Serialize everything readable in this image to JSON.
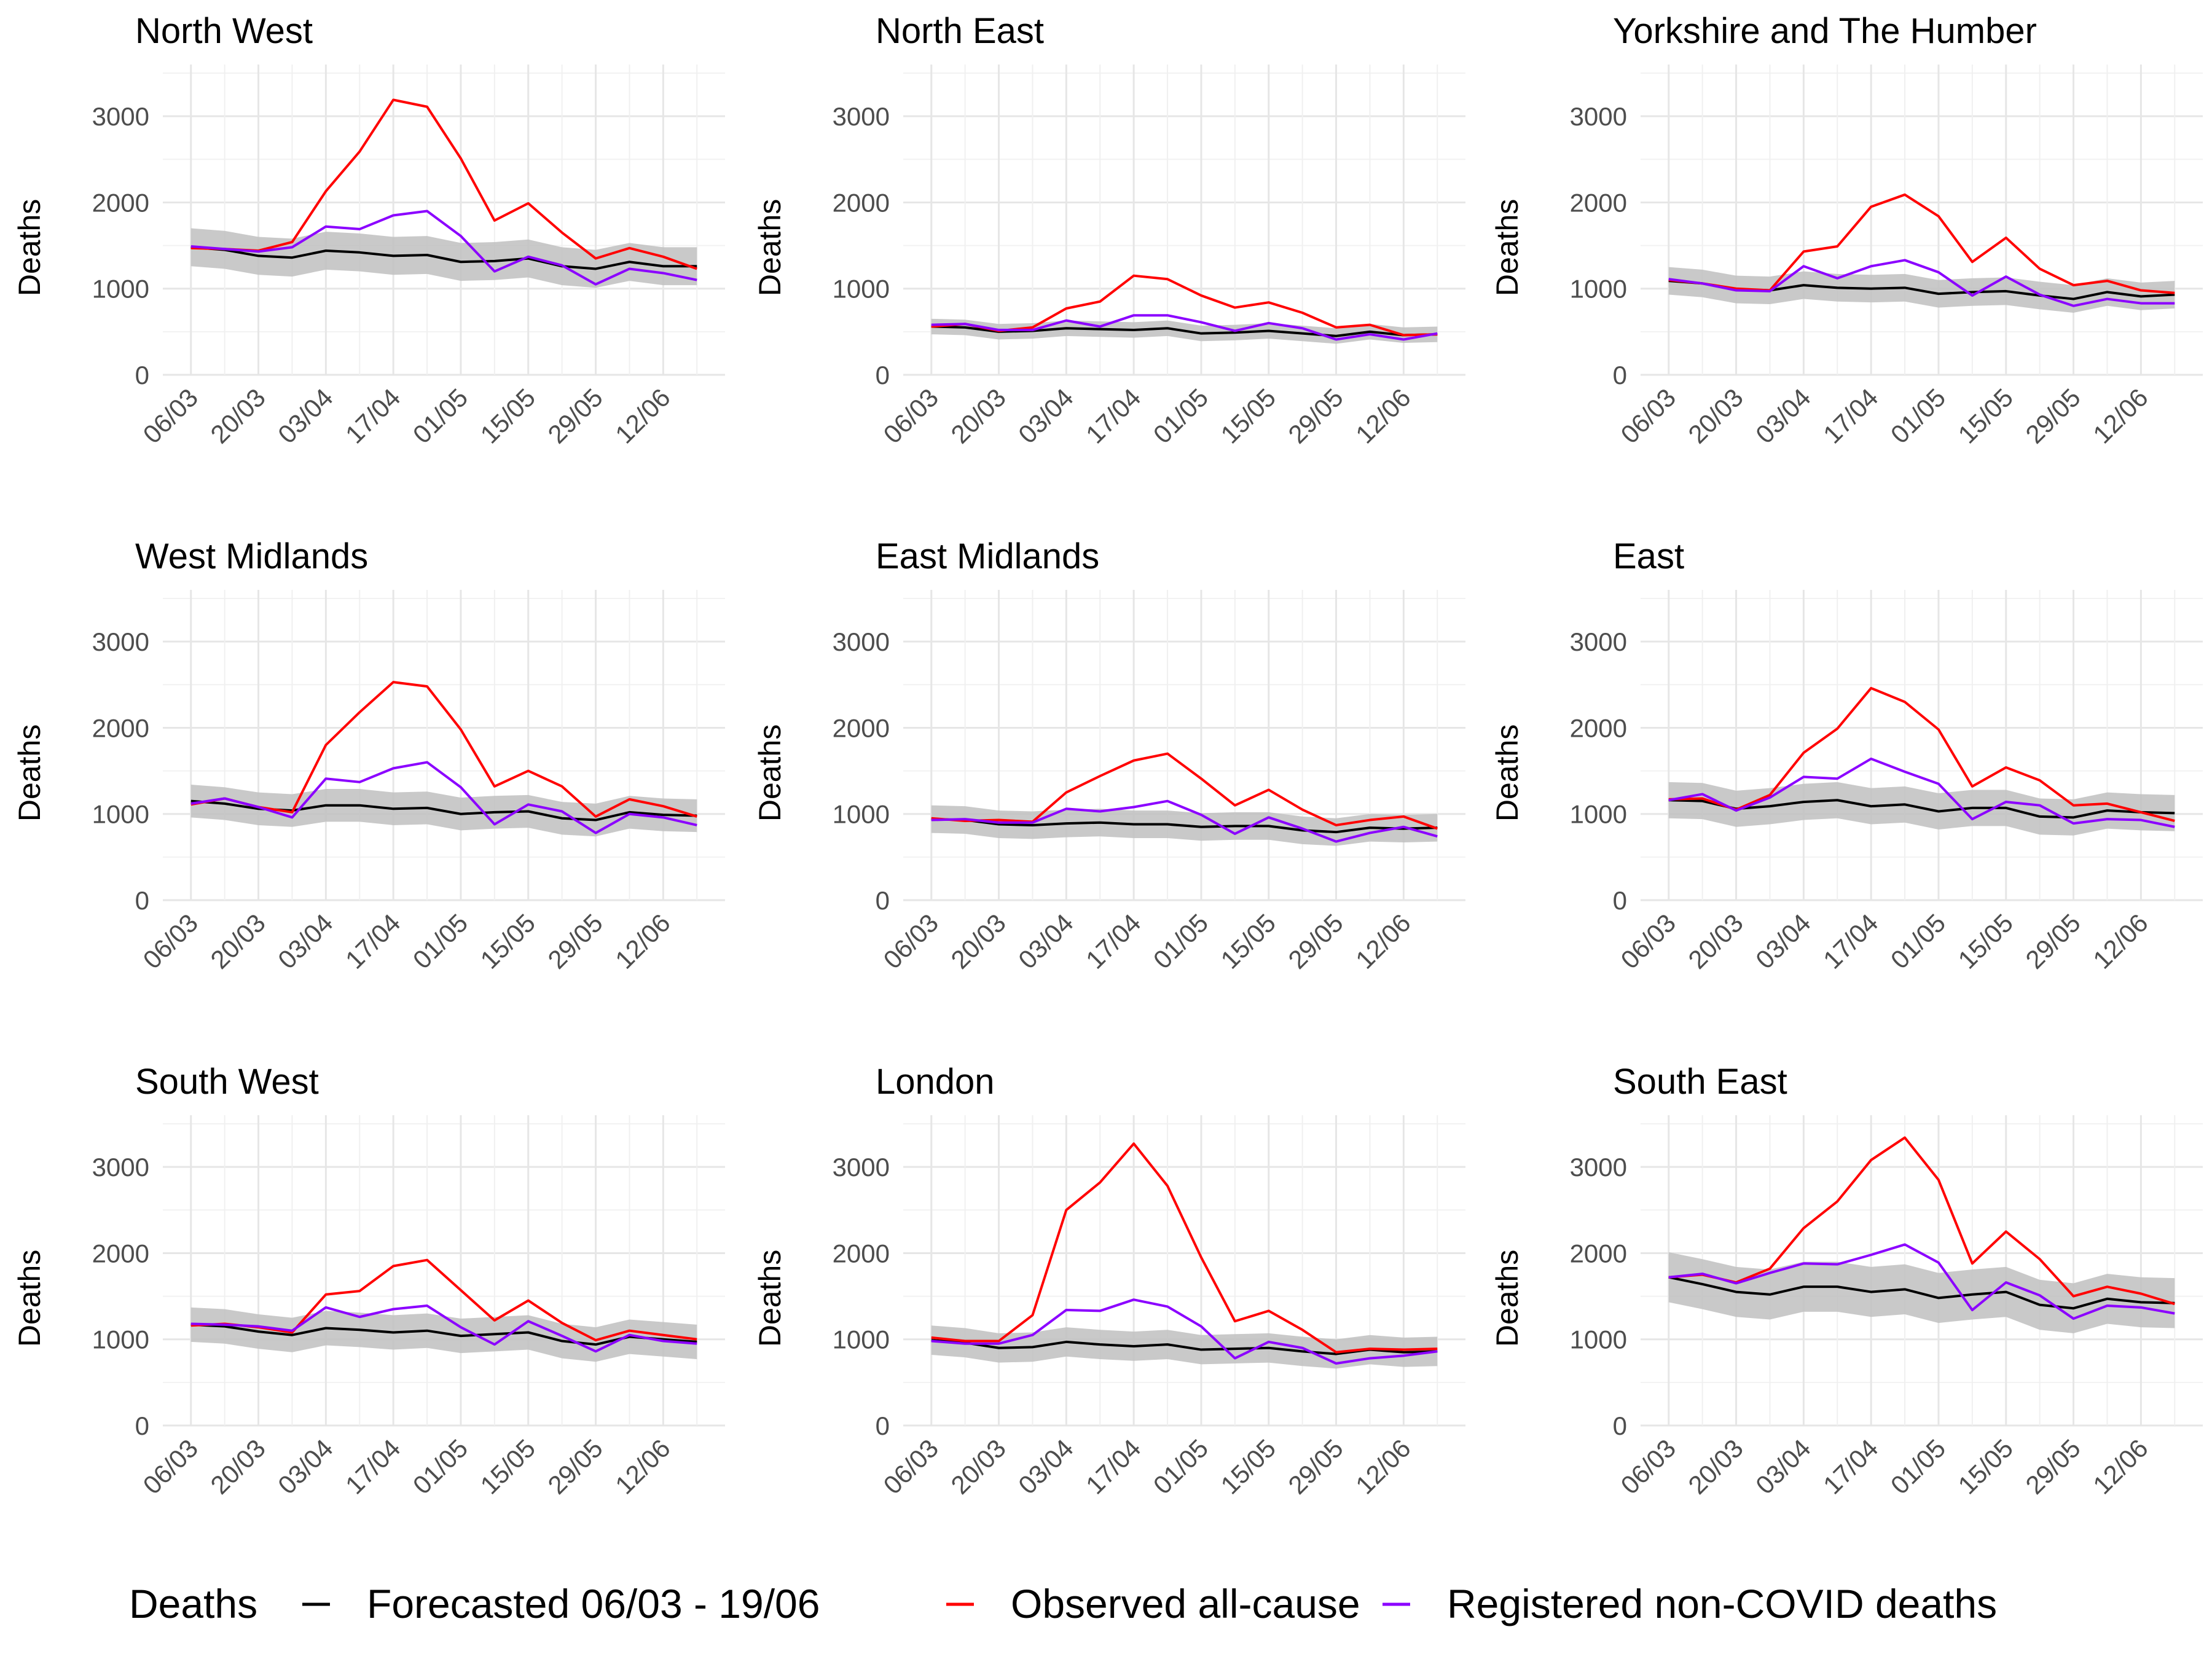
{
  "chart_data": {
    "type": "line",
    "ylabel": "Deaths",
    "ylim": [
      0,
      3600
    ],
    "yticks": [
      0,
      1000,
      2000,
      3000
    ],
    "x": [
      "06/03",
      "13/03",
      "20/03",
      "27/03",
      "03/04",
      "10/04",
      "17/04",
      "24/04",
      "01/05",
      "08/05",
      "15/05",
      "22/05",
      "29/05",
      "05/06",
      "12/06",
      "19/06"
    ],
    "xtick_labels": [
      "06/03",
      "20/03",
      "03/04",
      "17/04",
      "01/05",
      "15/05",
      "29/05",
      "12/06"
    ],
    "grid": true,
    "legend": {
      "title": "Deaths",
      "position": "bottom",
      "entries": [
        {
          "key": "forecast",
          "label": "Forecasted 06/03 - 19/06",
          "color": "#000000"
        },
        {
          "key": "observed",
          "label": "Observed all-cause",
          "color": "#ff0000"
        },
        {
          "key": "noncovid",
          "label": "Registered non-COVID deaths",
          "color": "#8b00ff"
        }
      ]
    },
    "band_color": "#bfbfbf",
    "panels": [
      {
        "title": "North West",
        "forecast": [
          1480,
          1450,
          1380,
          1360,
          1440,
          1420,
          1380,
          1390,
          1310,
          1320,
          1350,
          1260,
          1230,
          1310,
          1260,
          1260
        ],
        "band_width": 220,
        "observed": [
          1470,
          1460,
          1440,
          1540,
          2130,
          2590,
          3190,
          3110,
          2510,
          1790,
          1990,
          1650,
          1350,
          1470,
          1370,
          1230
        ],
        "noncovid": [
          1490,
          1460,
          1430,
          1480,
          1720,
          1690,
          1850,
          1900,
          1610,
          1200,
          1370,
          1270,
          1050,
          1230,
          1180,
          1100
        ]
      },
      {
        "title": "North East",
        "forecast": [
          560,
          550,
          500,
          510,
          540,
          530,
          520,
          540,
          480,
          490,
          510,
          480,
          450,
          500,
          460,
          470
        ],
        "band_width": 90,
        "observed": [
          560,
          590,
          510,
          550,
          770,
          850,
          1150,
          1110,
          920,
          780,
          840,
          720,
          550,
          580,
          460,
          470
        ],
        "noncovid": [
          580,
          590,
          520,
          520,
          630,
          560,
          690,
          690,
          610,
          510,
          600,
          540,
          410,
          470,
          410,
          480
        ]
      },
      {
        "title": "Yorkshire and The Humber",
        "forecast": [
          1090,
          1060,
          990,
          980,
          1040,
          1010,
          1000,
          1010,
          940,
          960,
          970,
          920,
          880,
          960,
          910,
          930
        ],
        "band_width": 160,
        "observed": [
          1100,
          1060,
          1000,
          980,
          1430,
          1490,
          1950,
          2090,
          1840,
          1310,
          1590,
          1230,
          1040,
          1090,
          980,
          950
        ],
        "noncovid": [
          1110,
          1060,
          980,
          970,
          1260,
          1120,
          1260,
          1330,
          1190,
          920,
          1140,
          930,
          800,
          880,
          830,
          830
        ]
      },
      {
        "title": "West Midlands",
        "forecast": [
          1150,
          1120,
          1060,
          1040,
          1100,
          1100,
          1060,
          1070,
          1000,
          1020,
          1030,
          950,
          930,
          1020,
          990,
          980
        ],
        "band_width": 190,
        "observed": [
          1110,
          1180,
          1080,
          1020,
          1800,
          2180,
          2530,
          2480,
          1980,
          1320,
          1500,
          1320,
          970,
          1170,
          1090,
          970
        ],
        "noncovid": [
          1120,
          1180,
          1080,
          960,
          1410,
          1370,
          1530,
          1600,
          1310,
          880,
          1110,
          1030,
          780,
          1000,
          960,
          870
        ]
      },
      {
        "title": "East Midlands",
        "forecast": [
          940,
          930,
          880,
          870,
          890,
          900,
          880,
          880,
          850,
          860,
          860,
          810,
          790,
          840,
          830,
          840
        ],
        "band_width": 160,
        "observed": [
          950,
          920,
          930,
          910,
          1250,
          1440,
          1620,
          1700,
          1410,
          1100,
          1280,
          1050,
          870,
          930,
          970,
          830
        ],
        "noncovid": [
          930,
          940,
          900,
          900,
          1060,
          1030,
          1080,
          1150,
          990,
          770,
          960,
          830,
          680,
          780,
          850,
          740
        ]
      },
      {
        "title": "East",
        "forecast": [
          1160,
          1150,
          1060,
          1090,
          1140,
          1160,
          1090,
          1110,
          1030,
          1070,
          1070,
          970,
          960,
          1040,
          1020,
          1010
        ],
        "band_width": 210,
        "observed": [
          1170,
          1180,
          1050,
          1220,
          1710,
          1990,
          2460,
          2300,
          1980,
          1320,
          1540,
          1390,
          1100,
          1120,
          1020,
          920
        ],
        "noncovid": [
          1160,
          1230,
          1040,
          1190,
          1430,
          1410,
          1640,
          1490,
          1350,
          940,
          1140,
          1100,
          890,
          940,
          930,
          850
        ]
      },
      {
        "title": "South West",
        "forecast": [
          1170,
          1150,
          1090,
          1050,
          1130,
          1110,
          1080,
          1100,
          1040,
          1060,
          1080,
          980,
          940,
          1030,
          1000,
          970
        ],
        "band_width": 200,
        "observed": [
          1160,
          1180,
          1140,
          1080,
          1520,
          1560,
          1850,
          1920,
          1570,
          1220,
          1450,
          1190,
          990,
          1100,
          1050,
          1000
        ],
        "noncovid": [
          1180,
          1170,
          1150,
          1100,
          1370,
          1260,
          1350,
          1390,
          1140,
          940,
          1210,
          1040,
          860,
          1050,
          980,
          950
        ]
      },
      {
        "title": "London",
        "forecast": [
          990,
          960,
          900,
          910,
          970,
          940,
          920,
          940,
          880,
          890,
          900,
          860,
          830,
          880,
          850,
          860
        ],
        "band_width": 170,
        "observed": [
          1020,
          980,
          980,
          1280,
          2500,
          2820,
          3270,
          2780,
          1950,
          1210,
          1330,
          1110,
          850,
          890,
          880,
          890
        ],
        "noncovid": [
          980,
          950,
          950,
          1050,
          1340,
          1330,
          1460,
          1380,
          1150,
          780,
          970,
          900,
          720,
          780,
          810,
          860
        ]
      },
      {
        "title": "South East",
        "forecast": [
          1720,
          1640,
          1550,
          1520,
          1610,
          1610,
          1550,
          1580,
          1480,
          1520,
          1550,
          1400,
          1360,
          1470,
          1430,
          1420
        ],
        "band_width": 290,
        "observed": [
          1720,
          1750,
          1660,
          1820,
          2290,
          2600,
          3080,
          3340,
          2850,
          1880,
          2250,
          1930,
          1500,
          1610,
          1530,
          1410
        ],
        "noncovid": [
          1720,
          1760,
          1650,
          1770,
          1880,
          1870,
          1980,
          2100,
          1890,
          1340,
          1660,
          1510,
          1240,
          1390,
          1370,
          1300
        ]
      }
    ]
  }
}
